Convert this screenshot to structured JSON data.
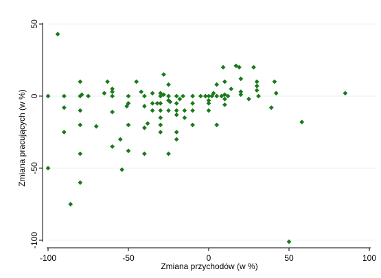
{
  "chart_data": {
    "type": "scatter",
    "xlabel": "Zmiana przychodów (w %)",
    "ylabel": "Zmiana pracujących (w %)",
    "xlim": [
      -100,
      100
    ],
    "ylim": [
      -100,
      50
    ],
    "xticks": [
      "-100",
      "-50",
      "0",
      "50",
      "100"
    ],
    "yticks": [
      "-100",
      "-50",
      "0",
      "50"
    ],
    "grid": true,
    "marker_color": "#1a7a1a",
    "marker": "diamond",
    "series": [
      {
        "points": [
          [
            -94,
            43
          ],
          [
            -100,
            0
          ],
          [
            -100,
            -50
          ],
          [
            -90,
            0
          ],
          [
            -90,
            -8
          ],
          [
            -90,
            -25
          ],
          [
            -86,
            -75
          ],
          [
            -80,
            10
          ],
          [
            -80,
            0
          ],
          [
            -80,
            -10
          ],
          [
            -80,
            -20
          ],
          [
            -80,
            -40
          ],
          [
            -80,
            -60
          ],
          [
            -79,
            1
          ],
          [
            -75,
            0
          ],
          [
            -70,
            -21
          ],
          [
            -65,
            2
          ],
          [
            -63,
            10
          ],
          [
            -60,
            5
          ],
          [
            -60,
            3
          ],
          [
            -60,
            0
          ],
          [
            -60,
            -11
          ],
          [
            -60,
            -35
          ],
          [
            -55,
            -30
          ],
          [
            -54,
            -51
          ],
          [
            -50,
            0
          ],
          [
            -51,
            -7
          ],
          [
            -50,
            -5
          ],
          [
            -50,
            -20
          ],
          [
            -50,
            -38
          ],
          [
            -45,
            10
          ],
          [
            -42,
            3
          ],
          [
            -40,
            0
          ],
          [
            -40,
            -7
          ],
          [
            -40,
            -22
          ],
          [
            -40,
            -40
          ],
          [
            -38,
            -19
          ],
          [
            -35,
            2
          ],
          [
            -35,
            -5
          ],
          [
            -35,
            -10
          ],
          [
            -32,
            -5
          ],
          [
            -30,
            2
          ],
          [
            -30,
            0
          ],
          [
            -30,
            -5
          ],
          [
            -30,
            -10
          ],
          [
            -30,
            -15
          ],
          [
            -30,
            -20
          ],
          [
            -30,
            -25
          ],
          [
            -28,
            15
          ],
          [
            -28,
            1
          ],
          [
            -25,
            8
          ],
          [
            -25,
            0
          ],
          [
            -25,
            -3
          ],
          [
            -25,
            -10
          ],
          [
            -25,
            -40
          ],
          [
            -24,
            -4
          ],
          [
            -20,
            0
          ],
          [
            -20,
            -5
          ],
          [
            -20,
            -10
          ],
          [
            -20,
            -13
          ],
          [
            -20,
            -25
          ],
          [
            -20,
            -30
          ],
          [
            -18,
            -2
          ],
          [
            -16,
            0
          ],
          [
            -15,
            -10
          ],
          [
            -15,
            -15
          ],
          [
            -10,
            0
          ],
          [
            -10,
            -5
          ],
          [
            -10,
            -10
          ],
          [
            -10,
            -20
          ],
          [
            -5,
            0
          ],
          [
            -2,
            0
          ],
          [
            0,
            0
          ],
          [
            0,
            -3
          ],
          [
            0,
            -5
          ],
          [
            0,
            -10
          ],
          [
            2,
            0
          ],
          [
            3,
            2
          ],
          [
            5,
            0
          ],
          [
            5,
            8
          ],
          [
            5,
            -20
          ],
          [
            8,
            0
          ],
          [
            9,
            20
          ],
          [
            10,
            10
          ],
          [
            10,
            1
          ],
          [
            10,
            -2
          ],
          [
            10,
            -6
          ],
          [
            12,
            0
          ],
          [
            14,
            5
          ],
          [
            17,
            21
          ],
          [
            19,
            20
          ],
          [
            20,
            1
          ],
          [
            20,
            3
          ],
          [
            20,
            12
          ],
          [
            25,
            -2
          ],
          [
            28,
            20
          ],
          [
            30,
            10
          ],
          [
            30,
            7
          ],
          [
            30,
            4
          ],
          [
            31,
            0
          ],
          [
            39,
            -8
          ],
          [
            41,
            10
          ],
          [
            42,
            2
          ],
          [
            50,
            -101
          ],
          [
            58,
            -18
          ],
          [
            85,
            2
          ]
        ]
      }
    ]
  }
}
